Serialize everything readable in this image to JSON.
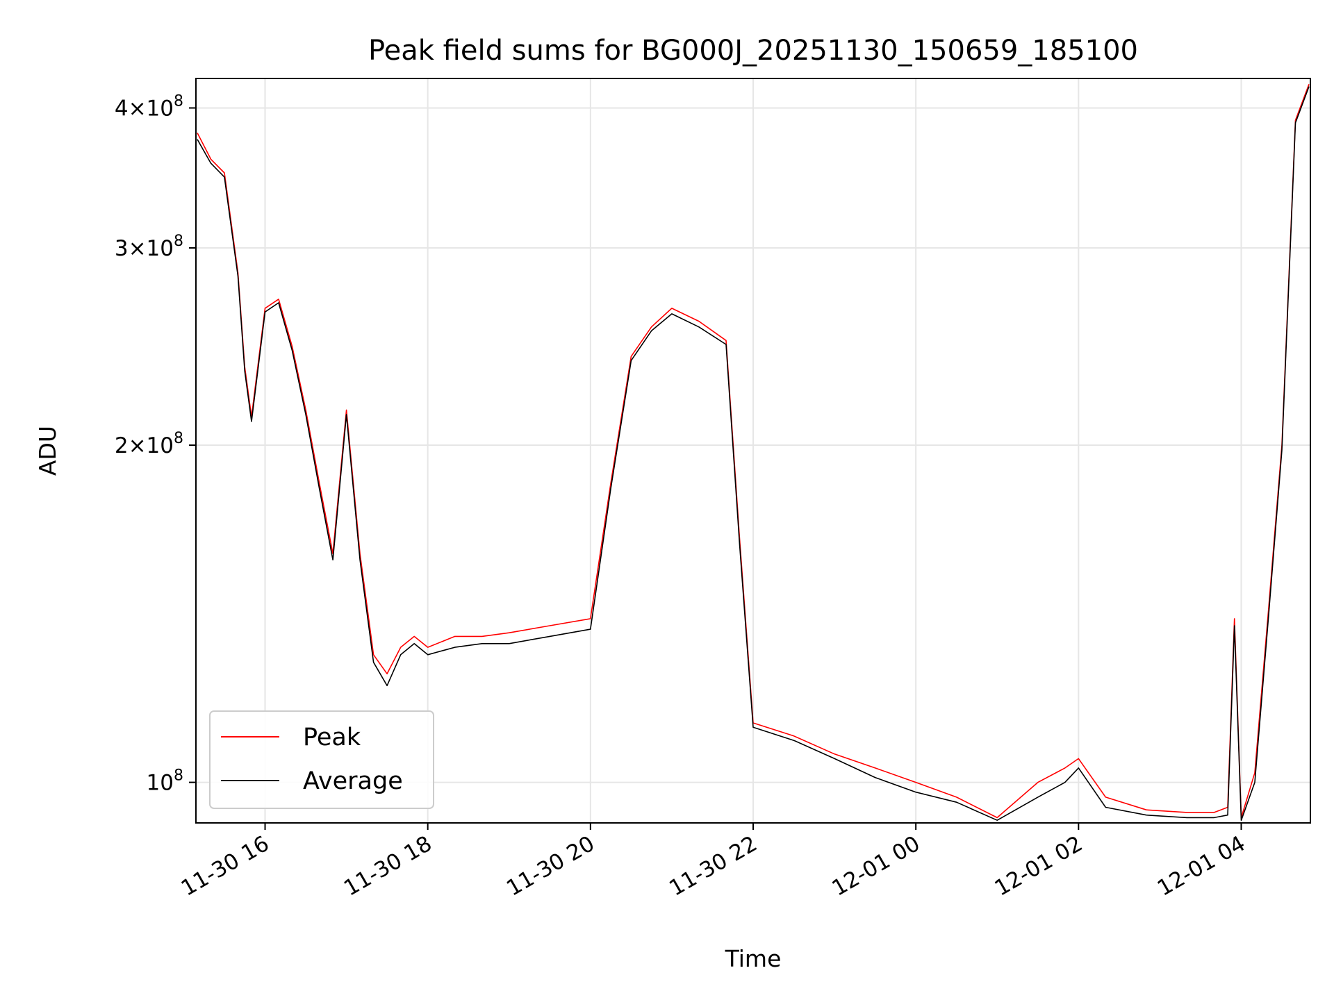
{
  "chart_data": {
    "type": "line",
    "title": "Peak field sums for BG000J_20251130_150659_185100",
    "xlabel": "Time",
    "ylabel": "ADU",
    "xlim": [
      "2025-11-30 15:09",
      "2025-12-01 04:51"
    ],
    "ylim": [
      92000000,
      425000000
    ],
    "yscale": "log",
    "grid": true,
    "legend_position": "lower-left",
    "x_ticks": [
      "11-30 16",
      "11-30 18",
      "11-30 20",
      "11-30 22",
      "12-01 00",
      "12-01 02",
      "12-01 04"
    ],
    "y_ticks": [
      {
        "value": 100000000,
        "mantissa": "",
        "exponent": "8",
        "base": "10"
      },
      {
        "value": 200000000,
        "mantissa": "2",
        "exponent": "8",
        "base": "10"
      },
      {
        "value": 300000000,
        "mantissa": "3",
        "exponent": "8",
        "base": "10"
      },
      {
        "value": 400000000,
        "mantissa": "4",
        "exponent": "8",
        "base": "10"
      }
    ],
    "series": [
      {
        "name": "Peak",
        "color": "#ff0000",
        "x": [
          "2025-11-30 15:10",
          "2025-11-30 15:20",
          "2025-11-30 15:30",
          "2025-11-30 15:40",
          "2025-11-30 15:45",
          "2025-11-30 15:50",
          "2025-11-30 16:00",
          "2025-11-30 16:10",
          "2025-11-30 16:20",
          "2025-11-30 16:30",
          "2025-11-30 16:40",
          "2025-11-30 16:50",
          "2025-11-30 17:00",
          "2025-11-30 17:10",
          "2025-11-30 17:20",
          "2025-11-30 17:30",
          "2025-11-30 17:40",
          "2025-11-30 17:50",
          "2025-11-30 18:00",
          "2025-11-30 18:20",
          "2025-11-30 18:40",
          "2025-11-30 19:00",
          "2025-11-30 19:30",
          "2025-11-30 20:00",
          "2025-11-30 20:15",
          "2025-11-30 20:30",
          "2025-11-30 20:45",
          "2025-11-30 21:00",
          "2025-11-30 21:20",
          "2025-11-30 21:40",
          "2025-11-30 21:50",
          "2025-11-30 22:00",
          "2025-11-30 22:30",
          "2025-11-30 23:00",
          "2025-11-30 23:30",
          "2025-12-01 00:00",
          "2025-12-01 00:30",
          "2025-12-01 01:00",
          "2025-12-01 01:30",
          "2025-12-01 01:50",
          "2025-12-01 02:00",
          "2025-12-01 02:20",
          "2025-12-01 02:50",
          "2025-12-01 03:20",
          "2025-12-01 03:40",
          "2025-12-01 03:50",
          "2025-12-01 03:55",
          "2025-12-01 04:00",
          "2025-12-01 04:10",
          "2025-12-01 04:20",
          "2025-12-01 04:30",
          "2025-12-01 04:40",
          "2025-12-01 04:50"
        ],
        "values": [
          380000000,
          360000000,
          350000000,
          285000000,
          235000000,
          212000000,
          265000000,
          270000000,
          245000000,
          215000000,
          185000000,
          160000000,
          215000000,
          160000000,
          130000000,
          125000000,
          132000000,
          135000000,
          132000000,
          135000000,
          135000000,
          136000000,
          138000000,
          140000000,
          185000000,
          240000000,
          255000000,
          265000000,
          258000000,
          248000000,
          165000000,
          113000000,
          110000000,
          106000000,
          103000000,
          100000000,
          97000000,
          93000000,
          100000000,
          103000000,
          105000000,
          97000000,
          94500000,
          94000000,
          94000000,
          95000000,
          140000000,
          93000000,
          102000000,
          142000000,
          200000000,
          390000000,
          420000000
        ]
      },
      {
        "name": "Average",
        "color": "#000000",
        "x": [
          "2025-11-30 15:10",
          "2025-11-30 15:20",
          "2025-11-30 15:30",
          "2025-11-30 15:40",
          "2025-11-30 15:45",
          "2025-11-30 15:50",
          "2025-11-30 16:00",
          "2025-11-30 16:10",
          "2025-11-30 16:20",
          "2025-11-30 16:30",
          "2025-11-30 16:40",
          "2025-11-30 16:50",
          "2025-11-30 17:00",
          "2025-11-30 17:10",
          "2025-11-30 17:20",
          "2025-11-30 17:30",
          "2025-11-30 17:40",
          "2025-11-30 17:50",
          "2025-11-30 18:00",
          "2025-11-30 18:20",
          "2025-11-30 18:40",
          "2025-11-30 19:00",
          "2025-11-30 19:30",
          "2025-11-30 20:00",
          "2025-11-30 20:15",
          "2025-11-30 20:30",
          "2025-11-30 20:45",
          "2025-11-30 21:00",
          "2025-11-30 21:20",
          "2025-11-30 21:40",
          "2025-11-30 21:50",
          "2025-11-30 22:00",
          "2025-11-30 22:30",
          "2025-11-30 23:00",
          "2025-11-30 23:30",
          "2025-12-01 00:00",
          "2025-12-01 00:30",
          "2025-12-01 01:00",
          "2025-12-01 01:30",
          "2025-12-01 01:50",
          "2025-12-01 02:00",
          "2025-12-01 02:20",
          "2025-12-01 02:50",
          "2025-12-01 03:20",
          "2025-12-01 03:40",
          "2025-12-01 03:50",
          "2025-12-01 03:55",
          "2025-12-01 04:00",
          "2025-12-01 04:10",
          "2025-12-01 04:20",
          "2025-12-01 04:30",
          "2025-12-01 04:40",
          "2025-12-01 04:50"
        ],
        "values": [
          375000000,
          357000000,
          347000000,
          283000000,
          233000000,
          210000000,
          263000000,
          268000000,
          243000000,
          213000000,
          183000000,
          158000000,
          213000000,
          158000000,
          128000000,
          122000000,
          130000000,
          133000000,
          130000000,
          132000000,
          133000000,
          133000000,
          135000000,
          137000000,
          183000000,
          238000000,
          253000000,
          262000000,
          255000000,
          246000000,
          163000000,
          112000000,
          109000000,
          105000000,
          101000000,
          98000000,
          96000000,
          92500000,
          97000000,
          100000000,
          103000000,
          95000000,
          93500000,
          93000000,
          93000000,
          93500000,
          138000000,
          92500000,
          100000000,
          140000000,
          198000000,
          388000000,
          418000000
        ]
      }
    ]
  }
}
